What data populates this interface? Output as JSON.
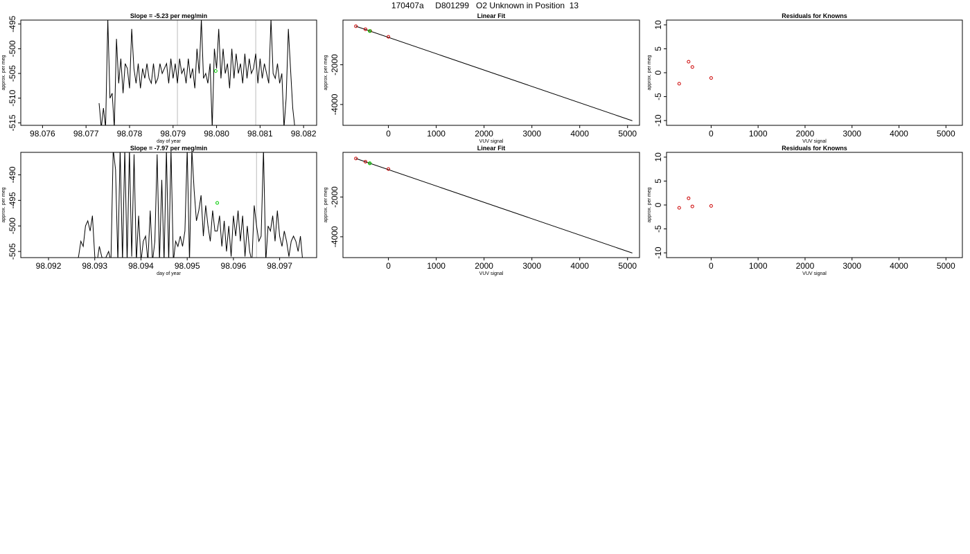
{
  "page_title": "170407a     D801299   O2 Unknown in Position  13",
  "colors": {
    "line": "#000000",
    "known_point": "#cc0000",
    "unknown_point": "#00cc00",
    "vline": "#bbbbbb"
  },
  "chart_data": [
    {
      "id": "ts1",
      "type": "line",
      "title": "Slope =  -5.23  per meg/min",
      "xlabel": "day of year",
      "ylabel": "approx. per meg",
      "xlim": [
        98.0755,
        98.0823
      ],
      "ylim": [
        -515.5,
        -494.2
      ],
      "xticks": [
        "98.076",
        "98.077",
        "98.078",
        "98.079",
        "98.080",
        "98.081",
        "98.082"
      ],
      "yticks": [
        "-495",
        "-500",
        "-505",
        "-510",
        "-515"
      ],
      "vlines": [
        98.0791,
        98.0809
      ],
      "unknown_point": {
        "x": 98.07998,
        "y": -504.5
      },
      "series": [
        {
          "x": [
            98.0773,
            98.07735,
            98.0774,
            98.07745,
            98.0775,
            98.07755,
            98.0776,
            98.07765,
            98.0777,
            98.07775,
            98.0778,
            98.07785,
            98.0779,
            98.07795,
            98.078,
            98.07805,
            98.0781,
            98.07815,
            98.0782,
            98.07825,
            98.0783,
            98.07835,
            98.0784,
            98.07845,
            98.0785,
            98.07855,
            98.0786,
            98.07865,
            98.0787,
            98.07875,
            98.0788,
            98.07885,
            98.0789,
            98.07895,
            98.079,
            98.07905,
            98.0791,
            98.07915,
            98.0792,
            98.07925,
            98.0793,
            98.07935,
            98.0794,
            98.07945,
            98.0795,
            98.07955,
            98.0796,
            98.07965,
            98.0797,
            98.07975,
            98.0798,
            98.07985,
            98.0799,
            98.07995,
            98.08,
            98.08005,
            98.0801,
            98.08015,
            98.0802,
            98.08025,
            98.0803,
            98.08035,
            98.0804,
            98.08045,
            98.0805,
            98.08055,
            98.0806,
            98.08065,
            98.0807,
            98.08075,
            98.0808,
            98.08085,
            98.0809,
            98.08095,
            98.081,
            98.08105,
            98.0811,
            98.08115,
            98.0812,
            98.08125,
            98.0813,
            98.08135,
            98.0814,
            98.08145,
            98.0815,
            98.08155,
            98.0816,
            98.08165,
            98.0817,
            98.08175,
            98.0818
          ],
          "y": [
            -511,
            -516,
            -512,
            -516,
            -494,
            -510,
            -509,
            -516,
            -498,
            -507,
            -502,
            -509,
            -503,
            -504,
            -508,
            -496,
            -504,
            -507,
            -503,
            -508,
            -504,
            -506,
            -503,
            -506,
            -507,
            -503,
            -507,
            -506,
            -503,
            -505,
            -504,
            -503,
            -507,
            -502,
            -506,
            -503,
            -507,
            -502,
            -505,
            -504,
            -507,
            -502,
            -506,
            -504,
            -508,
            -500,
            -505,
            -494,
            -506,
            -505,
            -507,
            -503,
            -516,
            -500,
            -504,
            -496,
            -506,
            -500,
            -505,
            -503,
            -508,
            -500,
            -506,
            -501,
            -505,
            -503,
            -507,
            -501,
            -506,
            -502,
            -505,
            -504,
            -501,
            -507,
            -502,
            -506,
            -503,
            -505,
            -507,
            -494,
            -505,
            -506,
            -503,
            -507,
            -505,
            -516,
            -510,
            -496,
            -504,
            -512,
            -516
          ]
        }
      ]
    },
    {
      "id": "fit1",
      "type": "line",
      "title": "Linear Fit",
      "xlabel": "VUV signal",
      "ylabel": "approx. per meg",
      "xlim": [
        -950,
        5250
      ],
      "ylim": [
        -5050,
        250
      ],
      "xticks": [
        "0",
        "1000",
        "2000",
        "3000",
        "4000",
        "5000"
      ],
      "yticks": [
        "-2000",
        "-4000"
      ],
      "fit_line": [
        {
          "x": -680,
          "y": -60
        },
        {
          "x": 5100,
          "y": -4820
        }
      ],
      "known_points": [
        {
          "x": -680,
          "y": -60
        },
        {
          "x": -480,
          "y": -210
        },
        {
          "x": -380,
          "y": -300
        },
        {
          "x": 0,
          "y": -590
        }
      ],
      "unknown_points": [
        {
          "x": -390,
          "y": -300
        }
      ]
    },
    {
      "id": "res1",
      "type": "scatter",
      "title": "Residuals for Knowns",
      "xlabel": "VUV signal",
      "ylabel": "approx. per meg",
      "xlim": [
        -950,
        5350
      ],
      "ylim": [
        -11,
        11
      ],
      "xticks": [
        "0",
        "1000",
        "2000",
        "3000",
        "4000",
        "5000"
      ],
      "yticks": [
        "10",
        "5",
        "0",
        "-5",
        "-10"
      ],
      "known_points": [
        {
          "x": -680,
          "y": -2.3
        },
        {
          "x": -480,
          "y": 2.3
        },
        {
          "x": -400,
          "y": 1.2
        },
        {
          "x": 0,
          "y": -1.1
        }
      ]
    },
    {
      "id": "ts2",
      "type": "line",
      "title": "Slope =  -7.97  per meg/min",
      "xlabel": "day of year",
      "ylabel": "approx. per meg",
      "xlim": [
        98.0914,
        98.0978
      ],
      "ylim": [
        -506.2,
        -485.6
      ],
      "xticks": [
        "98.092",
        "98.093",
        "98.094",
        "98.095",
        "98.096",
        "98.097"
      ],
      "yticks": [
        "-490",
        "-495",
        "-500",
        "-505"
      ],
      "vlines": [
        98.0965
      ],
      "unknown_point": {
        "x": 98.09565,
        "y": -495.5
      },
      "series": [
        {
          "x": [
            98.0926,
            98.09265,
            98.0927,
            98.09275,
            98.0928,
            98.09285,
            98.0929,
            98.09295,
            98.093,
            98.09305,
            98.0931,
            98.09315,
            98.0932,
            98.09325,
            98.0933,
            98.09335,
            98.0934,
            98.09345,
            98.0935,
            98.09355,
            98.0936,
            98.09365,
            98.0937,
            98.09375,
            98.0938,
            98.09385,
            98.0939,
            98.09395,
            98.094,
            98.09405,
            98.0941,
            98.09415,
            98.0942,
            98.09425,
            98.0943,
            98.09435,
            98.0944,
            98.09445,
            98.0945,
            98.09455,
            98.0946,
            98.09465,
            98.0947,
            98.09475,
            98.0948,
            98.09485,
            98.0949,
            98.09495,
            98.095,
            98.09505,
            98.0951,
            98.09515,
            98.0952,
            98.09525,
            98.0953,
            98.09535,
            98.0954,
            98.09545,
            98.0955,
            98.09555,
            98.0956,
            98.09565,
            98.0957,
            98.09575,
            98.0958,
            98.09585,
            98.0959,
            98.09595,
            98.096,
            98.09605,
            98.0961,
            98.09615,
            98.0962,
            98.09625,
            98.0963,
            98.09635,
            98.0964,
            98.09645,
            98.0965,
            98.09655,
            98.0966,
            98.09665,
            98.0967,
            98.09675,
            98.0968,
            98.09685,
            98.0969,
            98.09695,
            98.097,
            98.09705,
            98.0971,
            98.09715,
            98.0972,
            98.09725,
            98.0973,
            98.09735,
            98.0974,
            98.09745,
            98.0975
          ],
          "y": [
            -507,
            -506,
            -503,
            -504,
            -500,
            -499,
            -501,
            -498,
            -506,
            -507,
            -504,
            -506,
            -507,
            -506,
            -505,
            -507,
            -485,
            -489,
            -507,
            -485,
            -507,
            -485,
            -507,
            -485,
            -506,
            -486,
            -507,
            -498,
            -507,
            -503,
            -502,
            -507,
            -497,
            -507,
            -503,
            -486,
            -507,
            -491,
            -507,
            -485,
            -507,
            -485,
            -507,
            -503,
            -504,
            -502,
            -504,
            -501,
            -485,
            -507,
            -485,
            -493,
            -499,
            -497,
            -494,
            -502,
            -496,
            -500,
            -503,
            -497,
            -501,
            -501,
            -498,
            -504,
            -499,
            -505,
            -500,
            -506,
            -498,
            -502,
            -497,
            -503,
            -498,
            -506,
            -500,
            -505,
            -507,
            -496,
            -500,
            -503,
            -502,
            -485,
            -507,
            -500,
            -501,
            -498,
            -503,
            -497,
            -502,
            -504,
            -501,
            -503,
            -506,
            -503,
            -502,
            -503,
            -505,
            -502,
            -507
          ]
        }
      ]
    },
    {
      "id": "fit2",
      "type": "line",
      "title": "Linear Fit",
      "xlabel": "VUV signal",
      "ylabel": "approx. per meg",
      "xlim": [
        -950,
        5250
      ],
      "ylim": [
        -5050,
        250
      ],
      "xticks": [
        "0",
        "1000",
        "2000",
        "3000",
        "4000",
        "5000"
      ],
      "yticks": [
        "-2000",
        "-4000"
      ],
      "fit_line": [
        {
          "x": -680,
          "y": -60
        },
        {
          "x": 5100,
          "y": -4820
        }
      ],
      "known_points": [
        {
          "x": -680,
          "y": -60
        },
        {
          "x": -480,
          "y": -220
        },
        {
          "x": -390,
          "y": -300
        },
        {
          "x": 0,
          "y": -590
        }
      ],
      "unknown_points": [
        {
          "x": -390,
          "y": -300
        }
      ]
    },
    {
      "id": "res2",
      "type": "scatter",
      "title": "Residuals for Knowns",
      "xlabel": "VUV signal",
      "ylabel": "approx. per meg",
      "xlim": [
        -950,
        5350
      ],
      "ylim": [
        -11,
        11
      ],
      "xticks": [
        "0",
        "1000",
        "2000",
        "3000",
        "4000",
        "5000"
      ],
      "yticks": [
        "10",
        "5",
        "0",
        "-5",
        "-10"
      ],
      "known_points": [
        {
          "x": -680,
          "y": -0.6
        },
        {
          "x": -480,
          "y": 1.4
        },
        {
          "x": -400,
          "y": -0.3
        },
        {
          "x": 0,
          "y": -0.2
        }
      ]
    }
  ]
}
